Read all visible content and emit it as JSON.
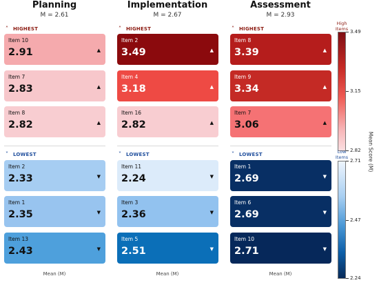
{
  "chart_data": {
    "type": "table",
    "columns": [
      {
        "title": "Planning",
        "mean_label": "M = 2.61",
        "highest": [
          {
            "item": "Item 10",
            "value": 2.91,
            "color": "#f5aaad"
          },
          {
            "item": "Item 7",
            "value": 2.83,
            "color": "#f7c7cb"
          },
          {
            "item": "Item 8",
            "value": 2.82,
            "color": "#f8cdd1"
          }
        ],
        "lowest": [
          {
            "item": "Item 2",
            "value": 2.33,
            "color": "#a6cdf2"
          },
          {
            "item": "Item 1",
            "value": 2.35,
            "color": "#98c4ef"
          },
          {
            "item": "Item 13",
            "value": 2.43,
            "color": "#4ea0dc"
          }
        ]
      },
      {
        "title": "Implementation",
        "mean_label": "M = 2.67",
        "highest": [
          {
            "item": "Item 2",
            "value": 3.49,
            "color": "#8b0a0d"
          },
          {
            "item": "Item 4",
            "value": 3.18,
            "color": "#ee4a44"
          },
          {
            "item": "Item 16",
            "value": 2.82,
            "color": "#f8cdd1"
          }
        ],
        "lowest": [
          {
            "item": "Item 11",
            "value": 2.24,
            "color": "#dcebfa"
          },
          {
            "item": "Item 3",
            "value": 2.36,
            "color": "#92c2ef"
          },
          {
            "item": "Item 5",
            "value": 2.51,
            "color": "#0b6fb8"
          }
        ]
      },
      {
        "title": "Assessment",
        "mean_label": "M = 2.93",
        "highest": [
          {
            "item": "Item 8",
            "value": 3.39,
            "color": "#b51d1c"
          },
          {
            "item": "Item 9",
            "value": 3.34,
            "color": "#c42a25"
          },
          {
            "item": "Item 7",
            "value": 3.06,
            "color": "#f57274"
          }
        ],
        "lowest": [
          {
            "item": "Item 1",
            "value": 2.69,
            "color": "#082f64"
          },
          {
            "item": "Item 6",
            "value": 2.69,
            "color": "#082f64"
          },
          {
            "item": "Item 10",
            "value": 2.71,
            "color": "#06285a"
          }
        ]
      }
    ],
    "section_labels": {
      "highest": "HIGHEST",
      "lowest": "LOWEST"
    },
    "xlabel": "Mean (M)",
    "ylabel": "Mean Score (M)",
    "colorbar_high": {
      "title": "High Items",
      "ticks": [
        "3.49",
        "3.15",
        "2.82"
      ],
      "range": [
        2.82,
        3.49
      ]
    },
    "colorbar_low": {
      "title": "Low Items",
      "ticks": [
        "2.71",
        "2.47",
        "2.24"
      ],
      "range": [
        2.24,
        2.71
      ]
    },
    "colors": {
      "high_label": "#8b1a10",
      "low_label": "#1f4e9c"
    }
  }
}
